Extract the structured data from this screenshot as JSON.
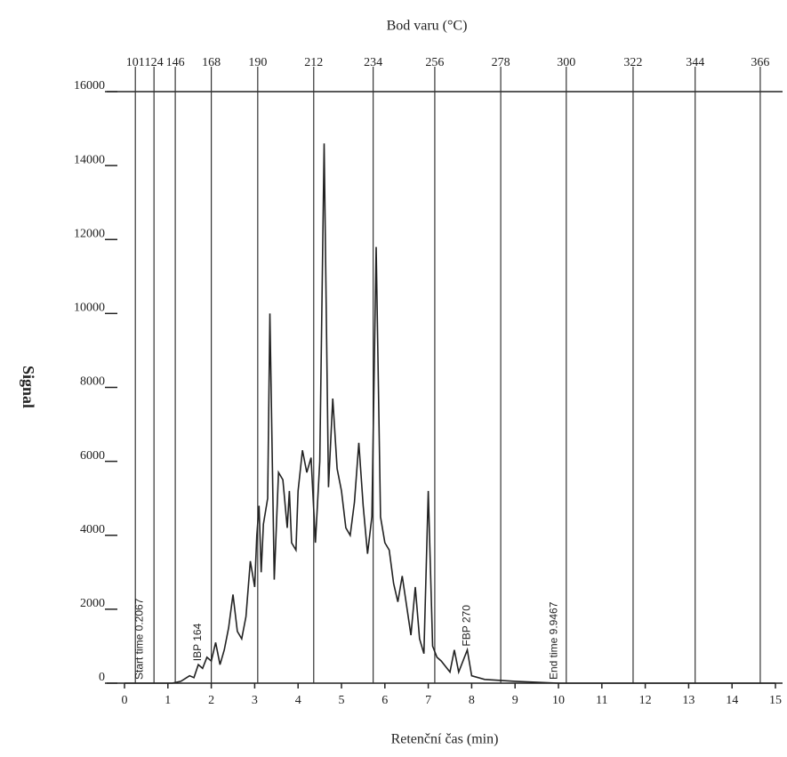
{
  "chart_data": {
    "type": "line",
    "title": "Bod varu (°C)",
    "xlabel": "Retenční čas (min)",
    "ylabel": "Signal",
    "xlim": [
      0,
      15
    ],
    "ylim": [
      0,
      16000
    ],
    "xticks": [
      0,
      1,
      2,
      3,
      4,
      5,
      6,
      7,
      8,
      9,
      10,
      11,
      12,
      13,
      14,
      15
    ],
    "yticks": [
      0,
      2000,
      4000,
      6000,
      8000,
      10000,
      12000,
      14000,
      16000
    ],
    "x2ticks": [
      {
        "value": 0.25,
        "label": "101"
      },
      {
        "value": 0.68,
        "label": "124"
      },
      {
        "value": 1.17,
        "label": "146"
      },
      {
        "value": 2.0,
        "label": "168"
      },
      {
        "value": 3.07,
        "label": "190"
      },
      {
        "value": 4.36,
        "label": "212"
      },
      {
        "value": 5.73,
        "label": "234"
      },
      {
        "value": 7.15,
        "label": "256"
      },
      {
        "value": 8.67,
        "label": "278"
      },
      {
        "value": 10.18,
        "label": "300"
      },
      {
        "value": 11.72,
        "label": "322"
      },
      {
        "value": 13.15,
        "label": "344"
      },
      {
        "value": 14.65,
        "label": "366"
      }
    ],
    "grid": true,
    "x": [
      0,
      1.1,
      1.3,
      1.5,
      1.6,
      1.7,
      1.8,
      1.9,
      2.0,
      2.1,
      2.2,
      2.3,
      2.4,
      2.5,
      2.6,
      2.7,
      2.8,
      2.9,
      3.0,
      3.05,
      3.1,
      3.15,
      3.2,
      3.3,
      3.35,
      3.45,
      3.55,
      3.65,
      3.75,
      3.8,
      3.85,
      3.95,
      4.0,
      4.1,
      4.2,
      4.3,
      4.4,
      4.5,
      4.6,
      4.7,
      4.8,
      4.9,
      5.0,
      5.1,
      5.2,
      5.3,
      5.4,
      5.5,
      5.6,
      5.7,
      5.8,
      5.9,
      6.0,
      6.1,
      6.2,
      6.3,
      6.4,
      6.5,
      6.6,
      6.7,
      6.8,
      6.9,
      7.0,
      7.1,
      7.2,
      7.3,
      7.5,
      7.6,
      7.7,
      7.9,
      8.0,
      8.3,
      9.0,
      10,
      15
    ],
    "series": [
      {
        "name": "Signal",
        "color": "#222222",
        "values": [
          0,
          0,
          50,
          200,
          150,
          500,
          400,
          700,
          600,
          1100,
          500,
          900,
          1500,
          2400,
          1400,
          1200,
          1800,
          3300,
          2600,
          4000,
          4800,
          3000,
          4300,
          5000,
          10000,
          2800,
          5700,
          5500,
          4200,
          5200,
          3800,
          3600,
          5200,
          6300,
          5700,
          6100,
          3800,
          6000,
          14600,
          5300,
          7700,
          5800,
          5200,
          4200,
          4000,
          4900,
          6500,
          4800,
          3500,
          4500,
          11800,
          4500,
          3800,
          3600,
          2700,
          2200,
          2900,
          2100,
          1300,
          2600,
          1200,
          800,
          5200,
          1000,
          700,
          600,
          300,
          900,
          300,
          900,
          200,
          100,
          50,
          0,
          0
        ]
      }
    ],
    "annotations": [
      {
        "text": "Start time 0.2067",
        "x": 0.35,
        "y": 0
      },
      {
        "text": "IBP 164",
        "x": 1.7,
        "y": 500
      },
      {
        "text": "FBP 270",
        "x": 7.9,
        "y": 900
      },
      {
        "text": "End time 9.9467",
        "x": 9.9,
        "y": 0
      }
    ]
  }
}
